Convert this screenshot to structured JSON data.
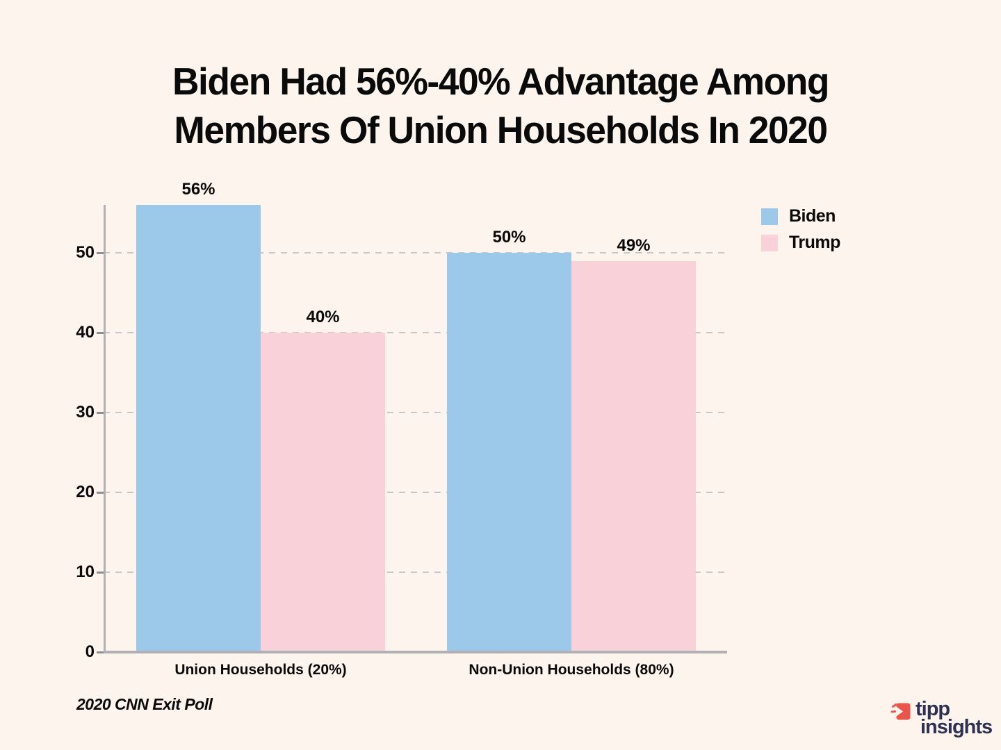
{
  "title": {
    "line1": "Biden Had 56%-40% Advantage Among",
    "line2": "Members Of Union Households In 2020"
  },
  "source_note": "2020 CNN Exit Poll",
  "logo": {
    "word1": "tipp",
    "word2": "insights",
    "icon": "megaphone-icon",
    "icon_color": "#E9544B",
    "text_color": "#2E3152"
  },
  "colors": {
    "background": "#FDF4EE",
    "biden_blue": "#9CC8E9",
    "trump_pink": "#F9D1D8",
    "axis_gray": "#b1b1b5",
    "grid_gray": "#c7c7c7",
    "text_black": "#0a0a0a"
  },
  "chart_data": {
    "type": "bar",
    "categories": [
      "Union Households (20%)",
      "Non-Union Households (80%)"
    ],
    "series": [
      {
        "name": "Biden",
        "color": "#9CC8E9",
        "values": [
          56,
          50
        ]
      },
      {
        "name": "Trump",
        "color": "#F9D1D8",
        "values": [
          40,
          49
        ]
      }
    ],
    "value_labels": [
      [
        "56%",
        "40%"
      ],
      [
        "50%",
        "49%"
      ]
    ],
    "yticks": [
      0,
      10,
      20,
      30,
      40,
      50
    ],
    "ylim": [
      0,
      56
    ],
    "grid": "horizontal-dashed",
    "legend_position": "top-right"
  }
}
